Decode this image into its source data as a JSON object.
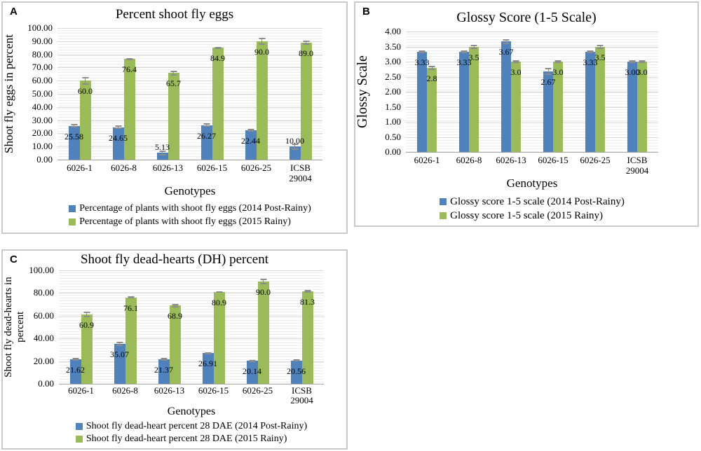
{
  "colors": {
    "series_blue": "#4f81bd",
    "series_green": "#9bbb59",
    "error_bar": "#8c8c8c",
    "gridline": "#d8d8d8",
    "panel_border": "#c9c9c9"
  },
  "chart_data": [
    {
      "type": "bar",
      "panel_label": "A",
      "title": "Percent shoot fly eggs",
      "xlabel": "Genotypes",
      "ylabel": "Shoot fly eggs in percent",
      "ylim": [
        0,
        100
      ],
      "yticks": [
        "100.00",
        "90.00",
        "80.00",
        "70.00",
        "60.00",
        "50.00",
        "40.00",
        "30.00",
        "20.00",
        "10.00",
        "0.00"
      ],
      "categories": [
        "6026-1",
        "6026-8",
        "6026-13",
        "6026-15",
        "6026-25",
        "ICSB 29004"
      ],
      "grid": true,
      "legend_position": "bottom",
      "error_bars": true,
      "series": [
        {
          "name": "Percentage of plants with shoot fly eggs (2014 Post-Rainy)",
          "color": "#4f81bd",
          "values": [
            25.58,
            24.65,
            5.13,
            26.27,
            22.44,
            10.0
          ],
          "labels": [
            "25.58",
            "24.65",
            "5.13",
            "26.27",
            "22.44",
            "10.00"
          ],
          "errors": [
            1.3,
            1.3,
            2.0,
            1.5,
            1.0,
            2.5
          ]
        },
        {
          "name": "Percentage of plants with shoot fly eggs (2015 Rainy)",
          "color": "#9bbb59",
          "values": [
            60.0,
            76.4,
            65.7,
            84.9,
            90.0,
            89.0
          ],
          "labels": [
            "60.0",
            "76.4",
            "65.7",
            "84.9",
            "90.0",
            "89.0"
          ],
          "errors": [
            3.0,
            0.7,
            2.0,
            1.0,
            2.5,
            1.7
          ]
        }
      ]
    },
    {
      "type": "bar",
      "panel_label": "B",
      "title": "Glossy Score (1-5 Scale)",
      "xlabel": "Genotypes",
      "ylabel": "Glossy Scale",
      "ylim": [
        0,
        4
      ],
      "yticks": [
        "4.00",
        "3.50",
        "3.00",
        "2.50",
        "2.00",
        "1.50",
        "1.00",
        "0.50",
        "0.00"
      ],
      "categories": [
        "6026-1",
        "6026-8",
        "6026-13",
        "6026-15",
        "6026-25",
        "ICSB 29004"
      ],
      "grid": true,
      "legend_position": "bottom",
      "error_bars": true,
      "series": [
        {
          "name": "Glossy score 1-5 scale (2014 Post-Rainy)",
          "color": "#4f81bd",
          "values": [
            3.33,
            3.33,
            3.67,
            2.67,
            3.33,
            3.0
          ],
          "labels": [
            "3.33",
            "3.33",
            "3.67",
            "2.67",
            "3.33",
            "3.00"
          ],
          "errors": [
            0.04,
            0.05,
            0.08,
            0.12,
            0.05,
            0.05
          ]
        },
        {
          "name": "Glossy score 1-5 scale (2015 Rainy)",
          "color": "#9bbb59",
          "values": [
            2.8,
            3.5,
            3.0,
            3.0,
            3.5,
            3.0
          ],
          "labels": [
            "2.8",
            "3.5",
            "3.0",
            "3.0",
            "3.5",
            "3.0"
          ],
          "errors": [
            0.07,
            0.07,
            0.04,
            0.04,
            0.07,
            0.04
          ]
        }
      ]
    },
    {
      "type": "bar",
      "panel_label": "C",
      "title": "Shoot fly dead-hearts (DH) percent",
      "xlabel": "Genotypes",
      "ylabel": "Shoot fly dead-hearts in percent",
      "ylim": [
        0,
        100
      ],
      "yticks": [
        "100.00",
        "80.00",
        "60.00",
        "40.00",
        "20.00",
        "0.00"
      ],
      "categories": [
        "6026-1",
        "6026-8",
        "6026-13",
        "6026-15",
        "6026-25",
        "ICSB 29004"
      ],
      "grid": true,
      "legend_position": "bottom",
      "error_bars": true,
      "series": [
        {
          "name": "Shoot fly dead-heart percent 28 DAE (2014 Post-Rainy)",
          "color": "#4f81bd",
          "values": [
            21.62,
            35.07,
            21.37,
            26.91,
            20.14,
            20.56
          ],
          "labels": [
            "21.62",
            "35.07",
            "21.37",
            "26.91",
            "20.14",
            "20.56"
          ],
          "errors": [
            1.0,
            2.0,
            1.2,
            1.0,
            0.8,
            1.0
          ]
        },
        {
          "name": "Shoot fly dead-heart percent 28 DAE (2015 Rainy)",
          "color": "#9bbb59",
          "values": [
            60.9,
            76.1,
            68.9,
            80.9,
            90.0,
            81.3
          ],
          "labels": [
            "60.9",
            "76.1",
            "68.9",
            "80.9",
            "90.0",
            "81.3"
          ],
          "errors": [
            2.5,
            1.0,
            1.5,
            0.8,
            2.5,
            1.2
          ]
        }
      ]
    }
  ]
}
